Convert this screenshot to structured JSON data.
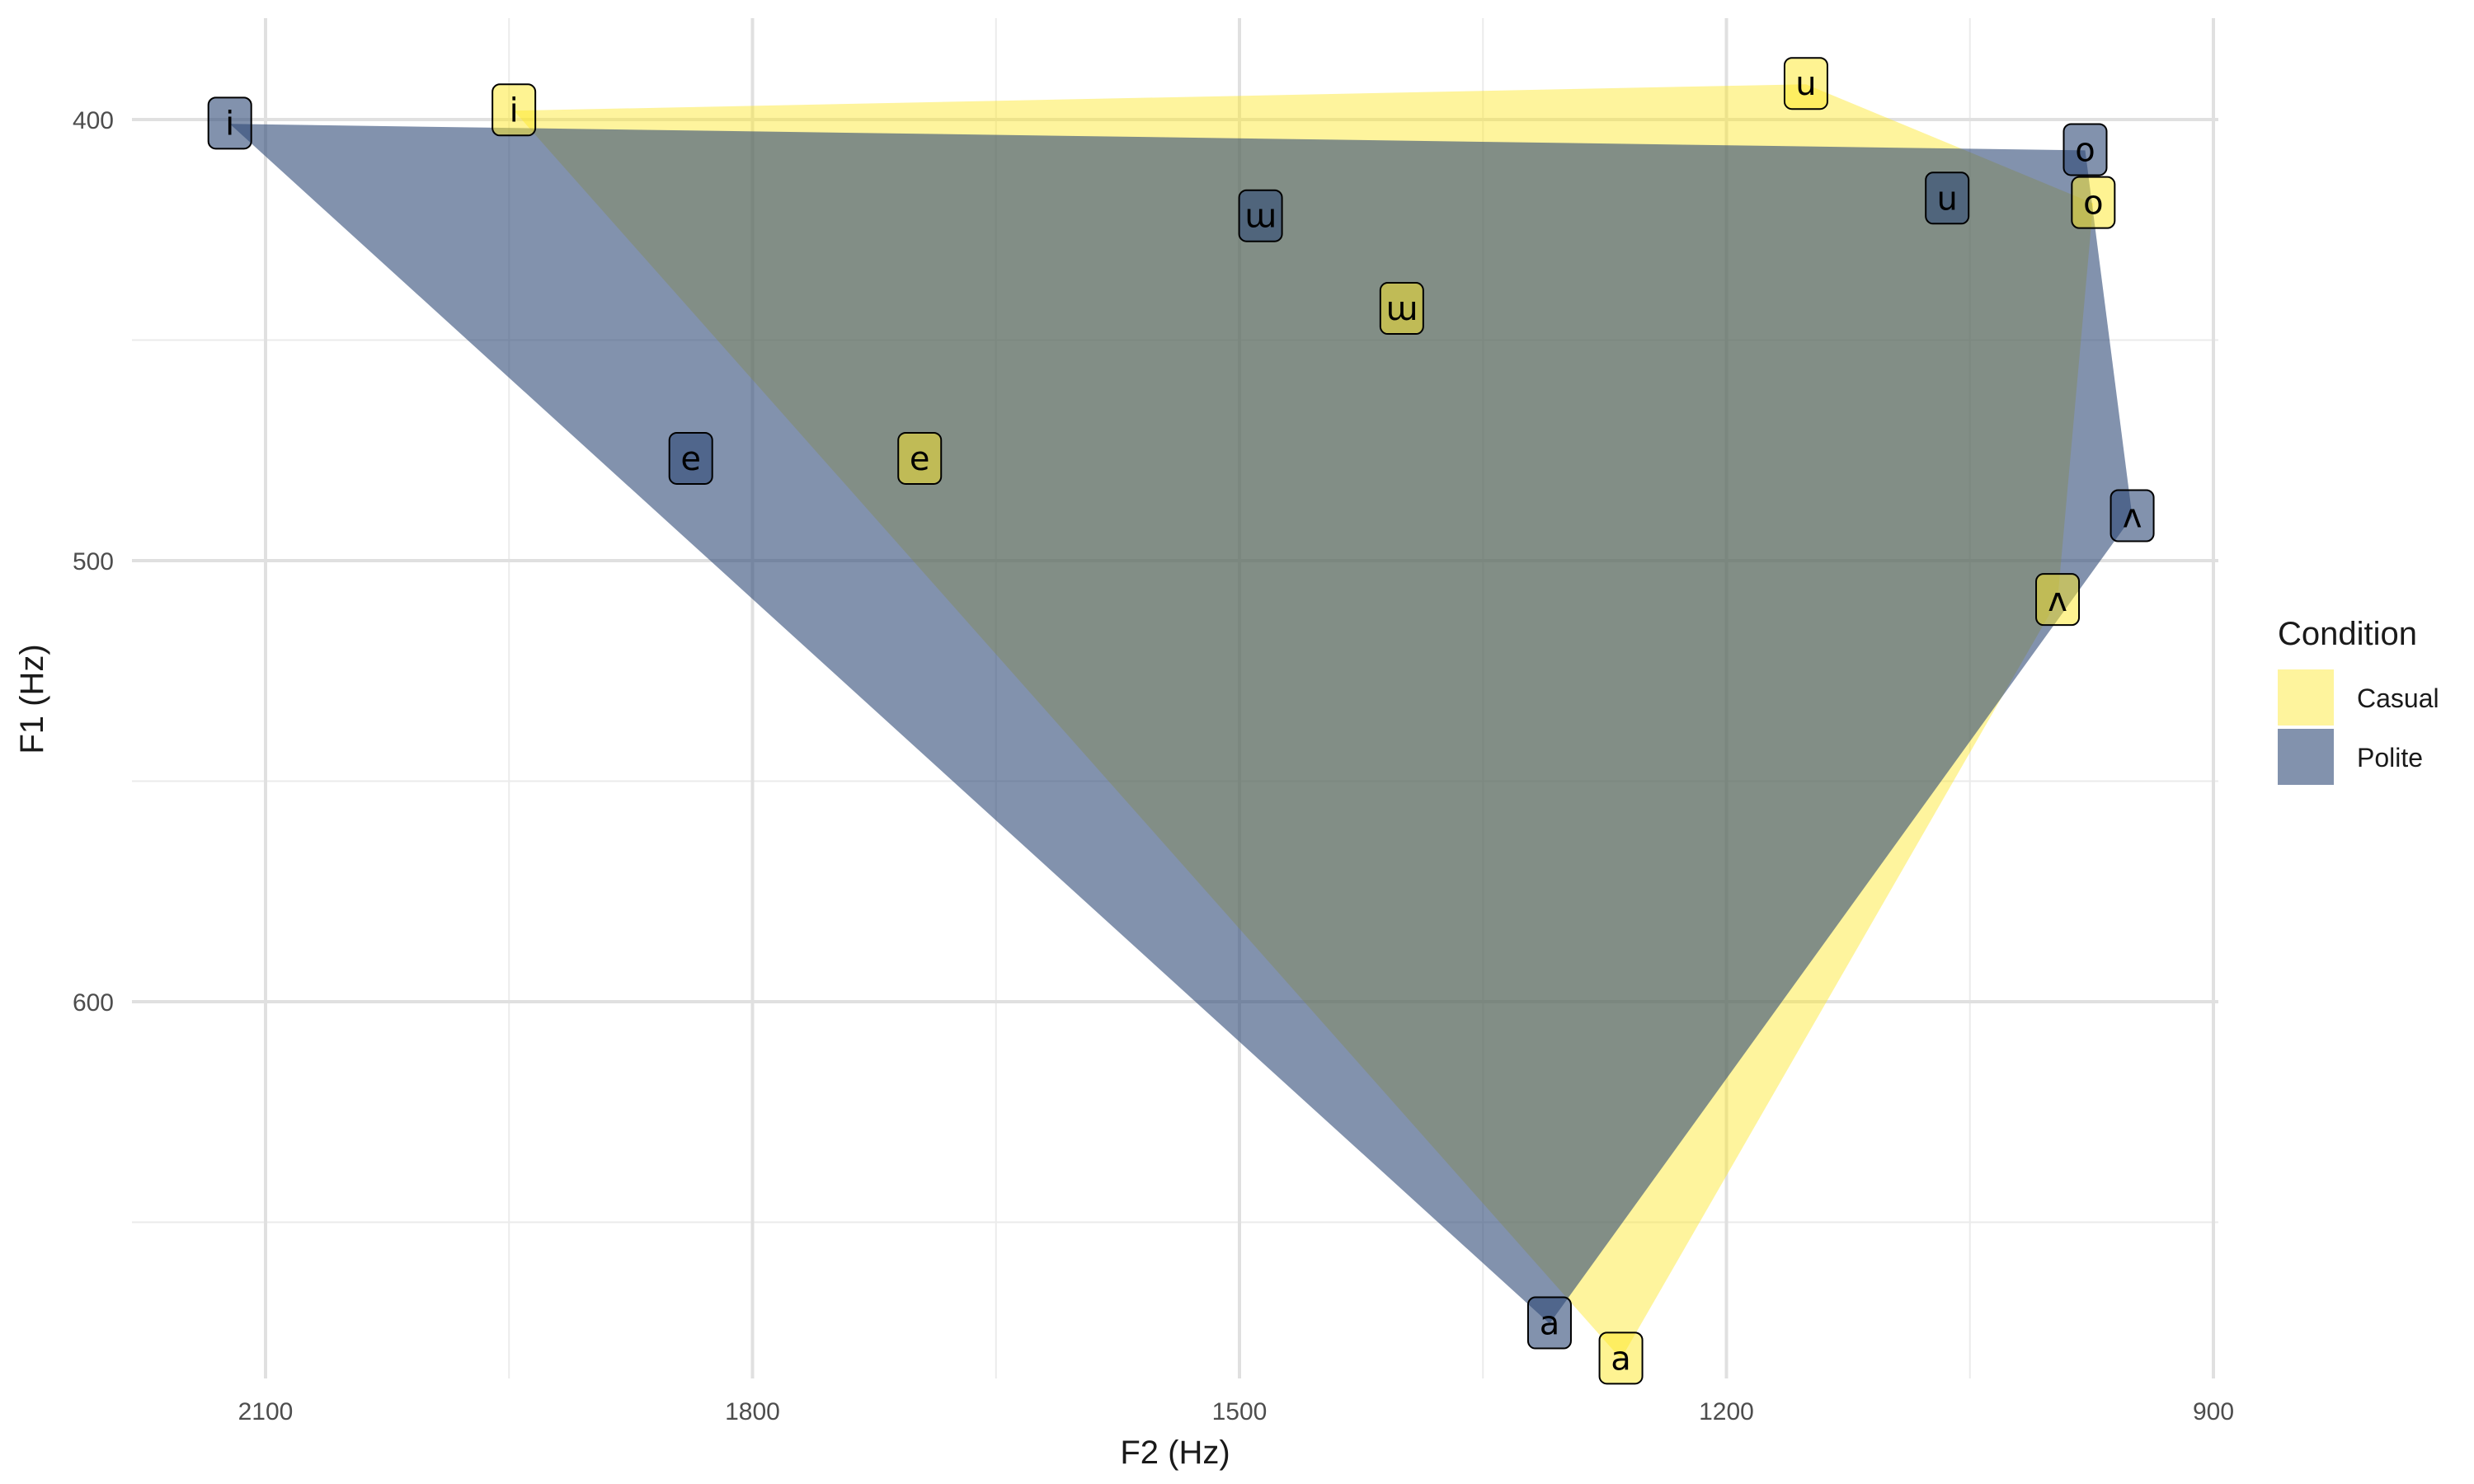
{
  "chart_data": {
    "type": "area",
    "title": "",
    "xlabel": "F2 (Hz)",
    "ylabel": "F1 (Hz)",
    "x_reversed": true,
    "y_reversed": true,
    "xlim": [
      2180,
      890
    ],
    "ylim": [
      378,
      688
    ],
    "x_ticks": [
      2100,
      1800,
      1500,
      1200,
      900
    ],
    "x_tick_labels": [
      "2100",
      "1800",
      "1500",
      "1200",
      "900"
    ],
    "y_ticks": [
      400,
      500,
      600
    ],
    "y_tick_labels": [
      "400",
      "500",
      "600"
    ],
    "grid": true,
    "legend": {
      "title": "Condition",
      "position": "right",
      "entries": [
        "Casual",
        "Polite"
      ]
    },
    "series": [
      {
        "name": "Casual",
        "color": "#FDE725",
        "hull": [
          {
            "label": "i",
            "f2": 1947,
            "f1": 398
          },
          {
            "label": "u",
            "f2": 1151,
            "f1": 392
          },
          {
            "label": "o",
            "f2": 974,
            "f1": 419
          },
          {
            "label": "ʌ",
            "f2": 996,
            "f1": 509
          },
          {
            "label": "a",
            "f2": 1265,
            "f1": 681
          }
        ],
        "points": [
          {
            "label": "i",
            "f2": 1947,
            "f1": 398
          },
          {
            "label": "u",
            "f2": 1151,
            "f1": 392
          },
          {
            "label": "o",
            "f2": 974,
            "f1": 419
          },
          {
            "label": "ɯ",
            "f2": 1400,
            "f1": 443
          },
          {
            "label": "e",
            "f2": 1697,
            "f1": 477
          },
          {
            "label": "ʌ",
            "f2": 996,
            "f1": 509
          },
          {
            "label": "a",
            "f2": 1265,
            "f1": 681
          }
        ]
      },
      {
        "name": "Polite",
        "color": "#2E4A76",
        "hull": [
          {
            "label": "i",
            "f2": 2122,
            "f1": 401
          },
          {
            "label": "o",
            "f2": 979,
            "f1": 407
          },
          {
            "label": "ʌ",
            "f2": 950,
            "f1": 490
          },
          {
            "label": "a",
            "f2": 1309,
            "f1": 673
          }
        ],
        "points": [
          {
            "label": "i",
            "f2": 2122,
            "f1": 401
          },
          {
            "label": "o",
            "f2": 979,
            "f1": 407
          },
          {
            "label": "u",
            "f2": 1064,
            "f1": 418
          },
          {
            "label": "ɯ",
            "f2": 1487,
            "f1": 422
          },
          {
            "label": "e",
            "f2": 1838,
            "f1": 477
          },
          {
            "label": "ʌ",
            "f2": 950,
            "f1": 490
          },
          {
            "label": "a",
            "f2": 1309,
            "f1": 673
          }
        ]
      }
    ]
  }
}
